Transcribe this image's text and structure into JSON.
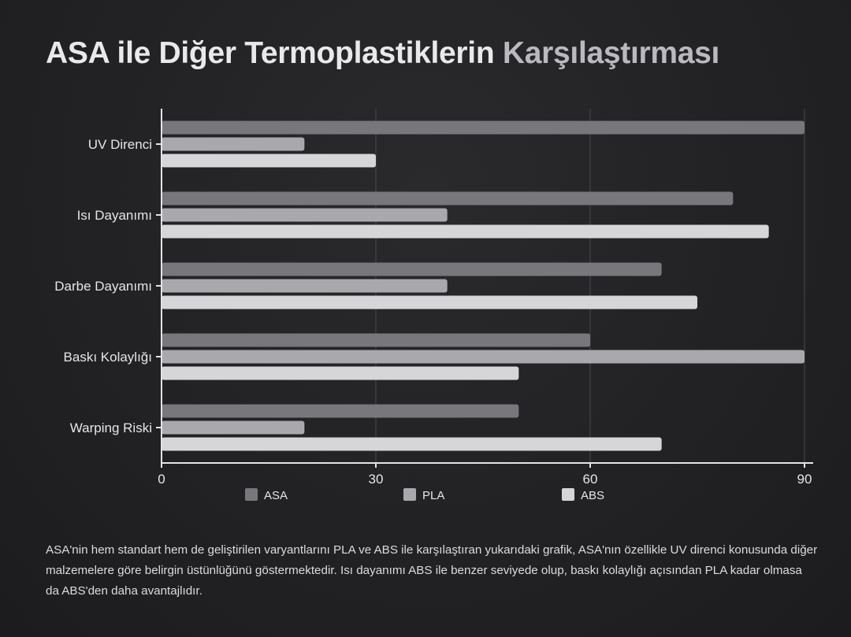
{
  "page": {
    "title_main": "ASA ile Diğer Termoplastiklerin",
    "title_accent": "Karşılaştırması",
    "caption": "ASA'nin hem standart hem de geliştirilen varyantlarını PLA ve ABS ile karşılaştıran yukarıdaki grafik, ASA'nın özellikle UV direnci konusunda diğer malzemelere göre belirgin üstünlüğünü göstermektedir. Isı dayanımı ABS ile benzer seviyede olup, baskı kolaylığı açısından PLA kadar olmasa da ABS'den daha avantajlıdır."
  },
  "chart_data": {
    "type": "bar",
    "orientation": "horizontal",
    "categories": [
      "UV Direnci",
      "Isı Dayanımı",
      "Darbe Dayanımı",
      "Baskı Kolaylığı",
      "Warping Riski"
    ],
    "series": [
      {
        "name": "ASA",
        "color": "#77777c",
        "values": [
          90,
          80,
          70,
          60,
          50
        ]
      },
      {
        "name": "PLA",
        "color": "#a9a9ad",
        "values": [
          20,
          40,
          40,
          90,
          20
        ]
      },
      {
        "name": "ABS",
        "color": "#d6d6d9",
        "values": [
          30,
          85,
          75,
          50,
          70
        ]
      }
    ],
    "xlim": [
      0,
      90
    ],
    "xticks": [
      0,
      30,
      60,
      90
    ],
    "grid": "vertical",
    "legend": "bottom"
  }
}
